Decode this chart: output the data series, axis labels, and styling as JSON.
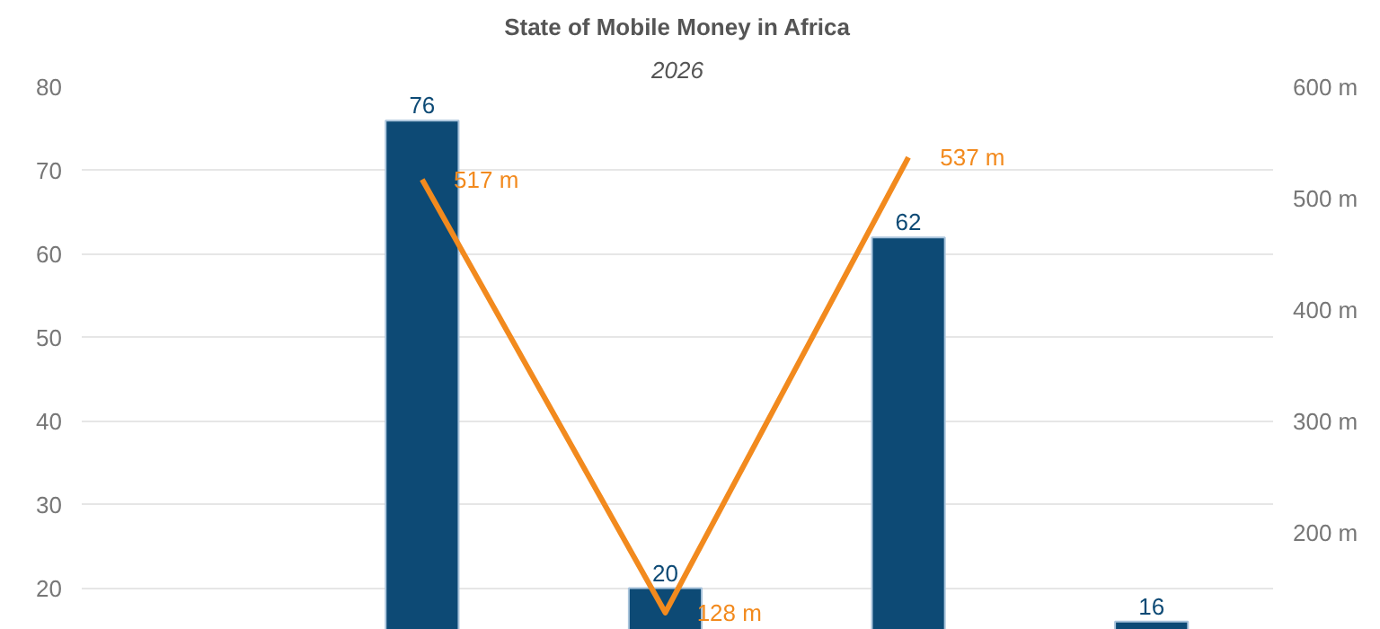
{
  "chart_data": {
    "type": "bar",
    "title": "State of Mobile Money in Africa",
    "subtitle": "2026",
    "categories": [
      null,
      null,
      null,
      null,
      null
    ],
    "series": [
      {
        "color": "#0d4a75",
        "values": [
          null,
          76,
          20,
          62,
          16
        ],
        "value_labels": [
          null,
          "76",
          "20",
          "62",
          "16"
        ]
      },
      {
        "type": "line",
        "axis": "y2",
        "color": "#f28a1e",
        "values": [
          null,
          517,
          128,
          537,
          null
        ],
        "value_labels": [
          null,
          "517 m",
          "128 m",
          "537 m",
          null
        ]
      }
    ],
    "ylim": [
      15,
      80
    ],
    "yticks": [
      20,
      30,
      40,
      50,
      60,
      70,
      80
    ],
    "y2lim": [
      112.5,
      600
    ],
    "y2ticks": [
      {
        "value": 200,
        "label": "200 m"
      },
      {
        "value": 300,
        "label": "300 m"
      },
      {
        "value": 400,
        "label": "400 m"
      },
      {
        "value": 500,
        "label": "500 m"
      },
      {
        "value": 600,
        "label": "600 m"
      }
    ],
    "grid": "y",
    "marker": "none",
    "line_style": "solid"
  }
}
